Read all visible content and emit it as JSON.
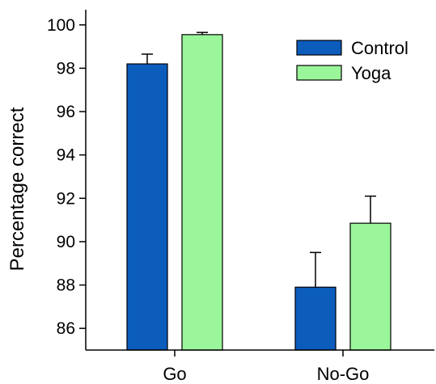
{
  "chart_data": {
    "type": "bar",
    "ylabel": "Percentage correct",
    "categories": [
      "Go",
      "No-Go"
    ],
    "ylim": [
      85,
      100.7
    ],
    "yticks": [
      86,
      88,
      90,
      92,
      94,
      96,
      98,
      100
    ],
    "series": [
      {
        "name": "Control",
        "color": "#0c5cbc",
        "values": [
          98.2,
          87.9
        ],
        "errors": [
          0.45,
          1.6
        ]
      },
      {
        "name": "Yoga",
        "color": "#9bf59b",
        "values": [
          99.55,
          90.85
        ],
        "errors": [
          0.1,
          1.25
        ]
      }
    ],
    "legend_position": "top-right",
    "error_bars": "upper"
  }
}
